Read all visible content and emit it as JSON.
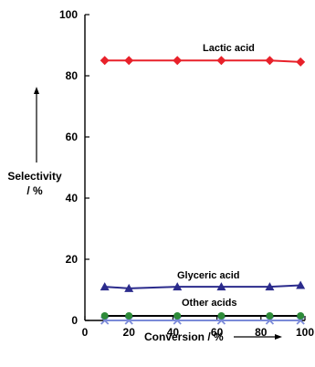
{
  "chart_data": {
    "type": "line",
    "title": "",
    "xlabel": "Conversion / %",
    "ylabel_lines": [
      "Selectivity",
      "/ %"
    ],
    "xlim": [
      0,
      100
    ],
    "ylim": [
      0,
      100
    ],
    "x_ticks": [
      0,
      20,
      40,
      60,
      80,
      100
    ],
    "y_ticks": [
      0,
      20,
      40,
      60,
      80,
      100
    ],
    "grid": false,
    "series": [
      {
        "name": "Lactic acid",
        "marker": "diamond",
        "color": "#e8212a",
        "line_color": "#e8212a",
        "x": [
          9,
          20,
          42,
          62,
          84,
          98
        ],
        "y": [
          85,
          85,
          85,
          85,
          85,
          84.5
        ]
      },
      {
        "name": "Glyceric acid",
        "marker": "triangle",
        "color": "#2b2b8c",
        "line_color": "#2b2b8c",
        "x": [
          9,
          20,
          42,
          62,
          84,
          98
        ],
        "y": [
          11,
          10.5,
          11,
          11,
          11,
          11.5
        ]
      },
      {
        "name": "Other acids",
        "marker": "circle",
        "color": "#2e8b3a",
        "line_color": "#000000",
        "x": [
          9,
          20,
          42,
          62,
          84,
          98
        ],
        "y": [
          1.5,
          1.5,
          1.5,
          1.5,
          1.5,
          1.5
        ]
      },
      {
        "name": "",
        "marker": "cross",
        "color": "#7a8ad8",
        "line_color": "#7a8ad8",
        "x": [
          9,
          20,
          42,
          62,
          84,
          98
        ],
        "y": [
          0,
          0,
          0,
          0,
          0,
          0
        ]
      }
    ]
  }
}
